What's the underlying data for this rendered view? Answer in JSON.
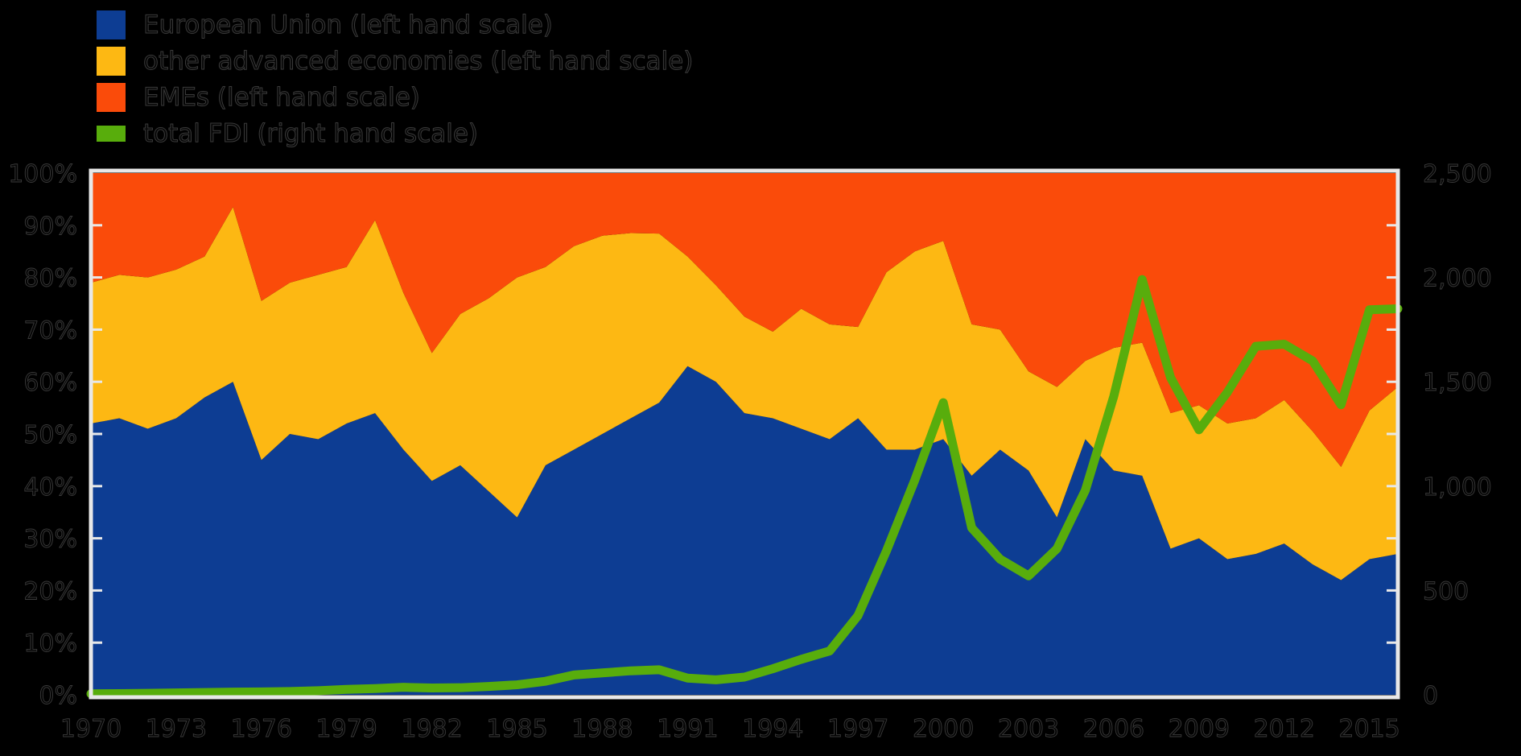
{
  "page": {
    "background": "#000000",
    "plot_border_color": "#e8e8e8"
  },
  "legend": {
    "items": [
      {
        "label": "European Union (left hand scale)",
        "color": "#0d3d93",
        "type": "area"
      },
      {
        "label": "other advanced economies (left hand scale)",
        "color": "#fdb813",
        "type": "area"
      },
      {
        "label": "EMEs (left hand scale)",
        "color": "#fa4b0a",
        "type": "area"
      },
      {
        "label": "total FDI (right hand scale)",
        "color": "#58ad0c",
        "type": "line"
      }
    ]
  },
  "chart_data": {
    "type": "area",
    "subtype": "stacked-area-with-line-overlay",
    "x": [
      1970,
      1971,
      1972,
      1973,
      1974,
      1975,
      1976,
      1977,
      1978,
      1979,
      1980,
      1981,
      1982,
      1983,
      1984,
      1985,
      1986,
      1987,
      1988,
      1989,
      1990,
      1991,
      1992,
      1993,
      1994,
      1995,
      1996,
      1997,
      1998,
      1999,
      2000,
      2001,
      2002,
      2003,
      2004,
      2005,
      2006,
      2007,
      2008,
      2009,
      2010,
      2011,
      2012,
      2013,
      2014,
      2015,
      2016
    ],
    "series": [
      {
        "name": "European Union",
        "type": "area",
        "stack": true,
        "axis": "left",
        "unit": "%",
        "color": "#0d3d93",
        "values": [
          52,
          53,
          51,
          53,
          57,
          60,
          45,
          50,
          49,
          52,
          54,
          47,
          41,
          44,
          39,
          34,
          44,
          47,
          50,
          53,
          56,
          63,
          60,
          54,
          53,
          51,
          49,
          53,
          47,
          47,
          49,
          42,
          47,
          43,
          34,
          49,
          43,
          42,
          28,
          30,
          26,
          27,
          29,
          25,
          22,
          26,
          27
        ]
      },
      {
        "name": "other advanced economies",
        "type": "area",
        "stack": true,
        "axis": "left",
        "unit": "%",
        "color": "#fdb813",
        "values": [
          27,
          27.5,
          29,
          28.5,
          27,
          33.5,
          30.5,
          29,
          31.5,
          30,
          37,
          30,
          24.5,
          29,
          37,
          46,
          38,
          39,
          38,
          35.5,
          32.4,
          21,
          18.5,
          18.5,
          16.6,
          23,
          22,
          17.5,
          34,
          38,
          38,
          29,
          23,
          19,
          25,
          15,
          23.5,
          25.5,
          26,
          25.5,
          26,
          26,
          27.5,
          25.5,
          21.7,
          28.5,
          32
        ]
      },
      {
        "name": "EMEs",
        "type": "area",
        "stack": true,
        "axis": "left",
        "unit": "%",
        "color": "#fa4b0a",
        "values": [
          21,
          19.5,
          20,
          18.5,
          16,
          6.5,
          24.5,
          21,
          19.5,
          18,
          9,
          23,
          34.5,
          27,
          24,
          20,
          18,
          14,
          12,
          11.5,
          11.6,
          16,
          21.5,
          27.5,
          30.4,
          26,
          29,
          29.5,
          19,
          15,
          13,
          29,
          30,
          38,
          41,
          36,
          33.5,
          32.5,
          46,
          44.5,
          48,
          47,
          43.5,
          49.5,
          56.3,
          45.5,
          41
        ]
      },
      {
        "name": "total FDI",
        "type": "line",
        "stack": false,
        "axis": "right",
        "unit": "bn",
        "color": "#58ad0c",
        "values": [
          5,
          6,
          7,
          9,
          11,
          13,
          14,
          16,
          20,
          26,
          30,
          36,
          33,
          34,
          40,
          48,
          65,
          95,
          105,
          115,
          120,
          80,
          72,
          85,
          125,
          170,
          210,
          380,
          690,
          1030,
          1400,
          800,
          650,
          570,
          700,
          980,
          1430,
          1990,
          1520,
          1270,
          1450,
          1670,
          1680,
          1600,
          1390,
          1845,
          1850
        ]
      }
    ],
    "axes": {
      "left": {
        "min": 0,
        "max": 100,
        "tick_step": 10,
        "tick_labels": [
          "0%",
          "10%",
          "20%",
          "30%",
          "40%",
          "50%",
          "60%",
          "70%",
          "80%",
          "90%",
          "100%"
        ]
      },
      "right": {
        "min": 0,
        "max": 2500,
        "tick_step": 500,
        "tick_labels": [
          "0",
          "500",
          "1,000",
          "1,500",
          "2,000",
          "2,500"
        ]
      },
      "x": {
        "tick_labels": [
          "1970",
          "1973",
          "1976",
          "1979",
          "1982",
          "1985",
          "1988",
          "1991",
          "1994",
          "1997",
          "2000",
          "2003",
          "2006",
          "2009",
          "2012",
          "2015"
        ],
        "label_step_years": 3
      }
    },
    "title": "",
    "xlabel": "",
    "ylabel_left": "",
    "ylabel_right": "",
    "grid": false,
    "legend_position": "top-left"
  }
}
